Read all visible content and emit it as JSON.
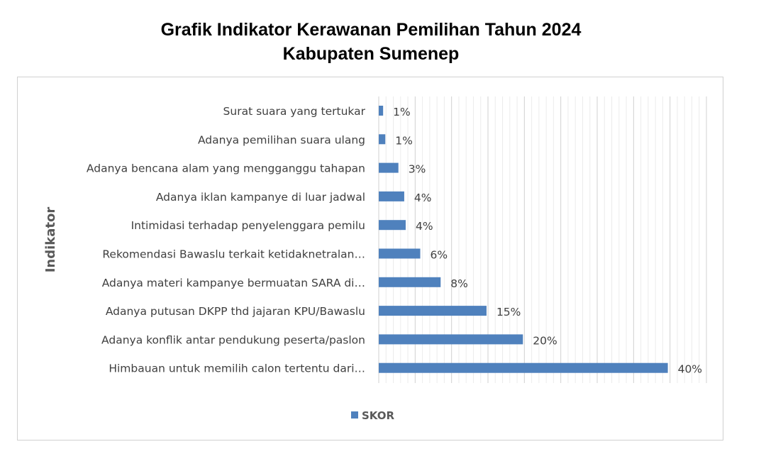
{
  "chart_data": {
    "type": "bar",
    "orientation": "horizontal",
    "title": "Grafik Indikator Kerawanan Pemilihan Tahun 2024",
    "subtitle": "Kabupaten Sumenep",
    "ylabel": "Indikator",
    "xlabel": "",
    "xlim": [
      0,
      45
    ],
    "grid": true,
    "legend_position": "bottom",
    "bar_color": "#4f81bd",
    "categories": [
      "Surat suara yang tertukar",
      "Adanya pemilihan suara ulang",
      "Adanya bencana alam yang mengganggu tahapan",
      "Adanya iklan kampanye di luar jadwal",
      "Intimidasi terhadap penyelenggara pemilu",
      "Rekomendasi Bawaslu terkait ketidaknetralan…",
      "Adanya materi kampanye bermuatan SARA di…",
      "Adanya putusan DKPP thd jajaran KPU/Bawaslu",
      "Adanya konflik antar pendukung peserta/paslon",
      "Himbauan untuk memilih calon tertentu dari…"
    ],
    "series": [
      {
        "name": "SKOR",
        "values": [
          0.6,
          0.9,
          2.7,
          3.5,
          3.7,
          5.7,
          8.5,
          14.8,
          19.8,
          39.7
        ],
        "data_labels": [
          "1%",
          "1%",
          "3%",
          "4%",
          "4%",
          "6%",
          "8%",
          "15%",
          "20%",
          "40%"
        ]
      }
    ]
  }
}
